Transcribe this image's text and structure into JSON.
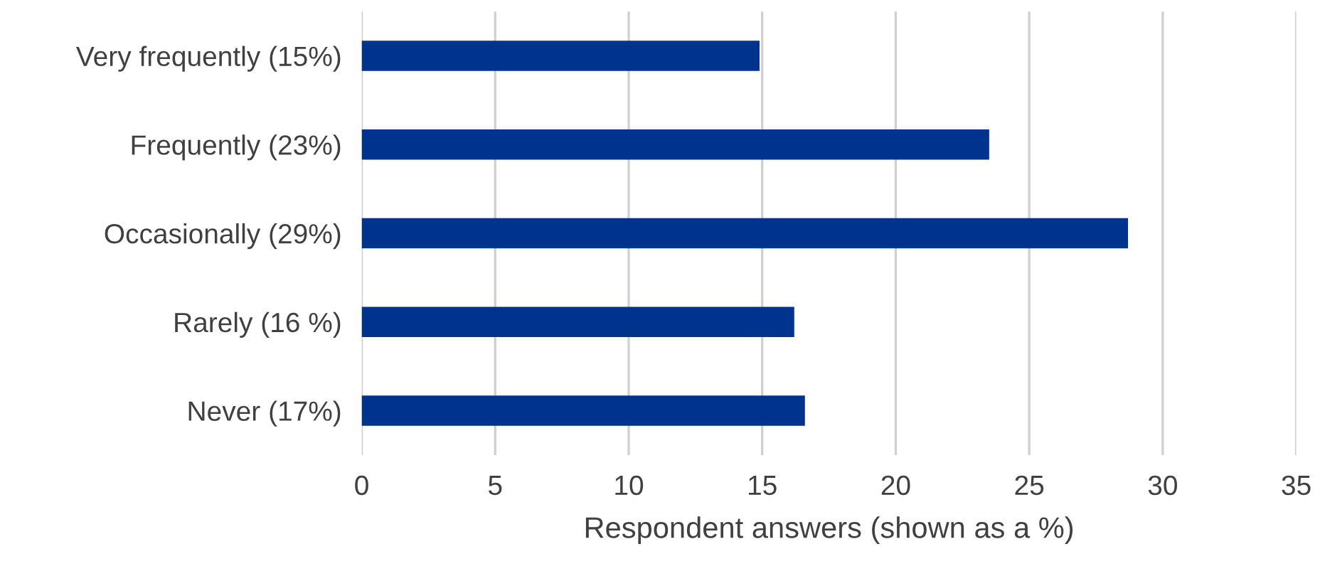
{
  "chart_data": {
    "type": "bar",
    "orientation": "horizontal",
    "categories": [
      "Very frequently (15%)",
      "Frequently (23%)",
      "Occasionally (29%)",
      "Rarely (16 %)",
      "Never (17%)"
    ],
    "values": [
      14.9,
      23.5,
      28.7,
      16.2,
      16.6
    ],
    "color": "#00338d",
    "xlabel": "Respondent answers (shown as a %)",
    "xlim": [
      0,
      35
    ],
    "xticks": [
      0,
      5,
      10,
      15,
      20,
      25,
      30,
      35
    ],
    "grid": "x",
    "legend": false
  }
}
